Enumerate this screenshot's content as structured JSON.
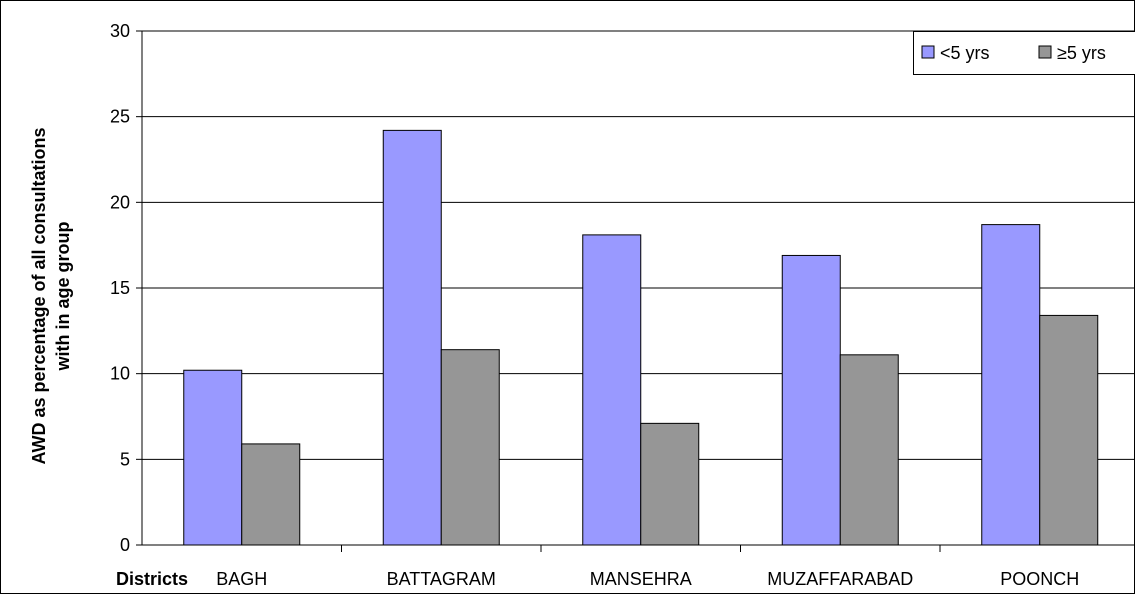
{
  "chart_data": {
    "type": "bar",
    "categories": [
      "BAGH",
      "BATTAGRAM",
      "MANSEHRA",
      "MUZAFFARABAD",
      "POONCH"
    ],
    "series": [
      {
        "name": "<5 yrs",
        "values": [
          10.2,
          24.2,
          18.1,
          16.9,
          18.7
        ],
        "color": "#9999ff"
      },
      {
        "name": "≥5 yrs",
        "values": [
          5.9,
          11.4,
          7.1,
          11.1,
          13.4
        ],
        "color": "#969696"
      }
    ],
    "ylabel_line1": "AWD as percentage of all consultations",
    "ylabel_line2": "with in age group",
    "xlabel_prefix": "Districts",
    "ylim": [
      0,
      30
    ],
    "yticks": [
      0,
      5,
      10,
      15,
      20,
      25,
      30
    ],
    "grid": true,
    "legend_position": "top-right"
  }
}
